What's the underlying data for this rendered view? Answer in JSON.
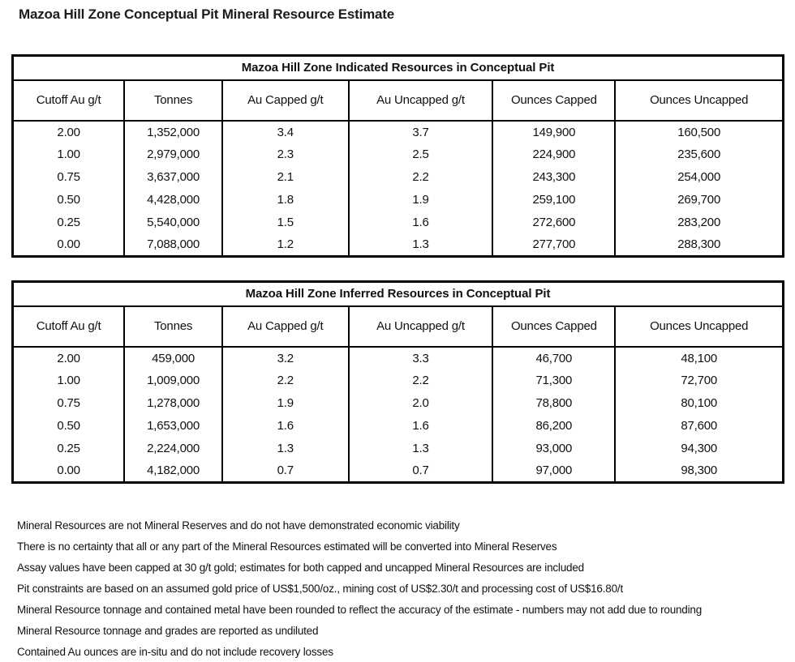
{
  "page_title": "Mazoa Hill Zone Conceptual Pit Mineral Resource Estimate",
  "columns": [
    "Cutoff Au g/t",
    "Tonnes",
    "Au Capped g/t",
    "Au Uncapped g/t",
    "Ounces Capped",
    "Ounces Uncapped"
  ],
  "tables": [
    {
      "title": "Mazoa Hill Zone Indicated Resources in Conceptual Pit",
      "rows": [
        [
          "2.00",
          "1,352,000",
          "3.4",
          "3.7",
          "149,900",
          "160,500"
        ],
        [
          "1.00",
          "2,979,000",
          "2.3",
          "2.5",
          "224,900",
          "235,600"
        ],
        [
          "0.75",
          "3,637,000",
          "2.1",
          "2.2",
          "243,300",
          "254,000"
        ],
        [
          "0.50",
          "4,428,000",
          "1.8",
          "1.9",
          "259,100",
          "269,700"
        ],
        [
          "0.25",
          "5,540,000",
          "1.5",
          "1.6",
          "272,600",
          "283,200"
        ],
        [
          "0.00",
          "7,088,000",
          "1.2",
          "1.3",
          "277,700",
          "288,300"
        ]
      ]
    },
    {
      "title": "Mazoa Hill Zone Inferred Resources in Conceptual Pit",
      "rows": [
        [
          "2.00",
          "459,000",
          "3.2",
          "3.3",
          "46,700",
          "48,100"
        ],
        [
          "1.00",
          "1,009,000",
          "2.2",
          "2.2",
          "71,300",
          "72,700"
        ],
        [
          "0.75",
          "1,278,000",
          "1.9",
          "2.0",
          "78,800",
          "80,100"
        ],
        [
          "0.50",
          "1,653,000",
          "1.6",
          "1.6",
          "86,200",
          "87,600"
        ],
        [
          "0.25",
          "2,224,000",
          "1.3",
          "1.3",
          "93,000",
          "94,300"
        ],
        [
          "0.00",
          "4,182,000",
          "0.7",
          "0.7",
          "97,000",
          "98,300"
        ]
      ]
    }
  ],
  "notes": [
    "Mineral Resources are not Mineral Reserves and do not have demonstrated economic viability",
    "There is no certainty that all or any part of the Mineral Resources estimated will be converted into Mineral Reserves",
    "Assay values have been capped at 30 g/t gold; estimates for both capped and uncapped Mineral Resources are included",
    "Pit constraints are based on an assumed gold price of US$1,500/oz., mining cost of US$2.30/t and processing cost of US$16.80/t",
    "Mineral Resource tonnage and contained metal have been rounded to reflect the accuracy of the estimate - numbers may not add due to rounding",
    "Mineral Resource tonnage and grades are reported as undiluted",
    "Contained Au ounces are in-situ and do not include recovery losses"
  ]
}
